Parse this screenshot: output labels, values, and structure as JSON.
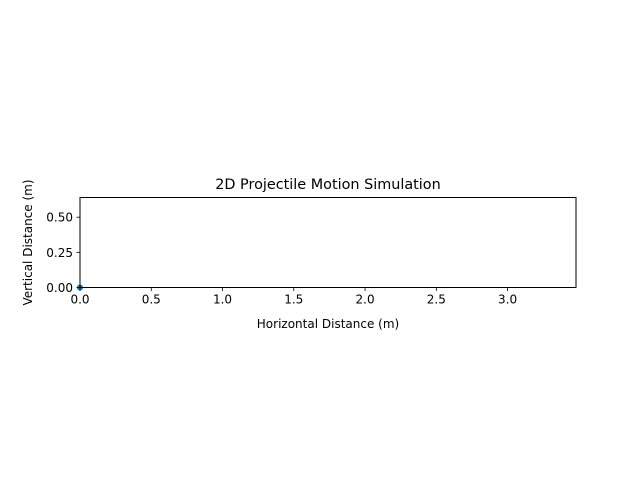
{
  "chart_data": {
    "type": "line",
    "title": "2D Projectile Motion Simulation",
    "xlabel": "Horizontal Distance (m)",
    "ylabel": "Vertical Distance (m)",
    "xlim": [
      0,
      3.48
    ],
    "ylim": [
      0,
      0.64
    ],
    "xticks": [
      0.0,
      0.5,
      1.0,
      1.5,
      2.0,
      2.5,
      3.0
    ],
    "xtick_labels": [
      "0.0",
      "0.5",
      "1.0",
      "1.5",
      "2.0",
      "2.5",
      "3.0"
    ],
    "yticks": [
      0.0,
      0.25,
      0.5
    ],
    "ytick_labels": [
      "0.00",
      "0.25",
      "0.50"
    ],
    "grid": false,
    "series": [
      {
        "x": [
          0.0
        ],
        "y": [
          0.0
        ],
        "color": "#1f77b4",
        "marker": "circle"
      }
    ]
  }
}
